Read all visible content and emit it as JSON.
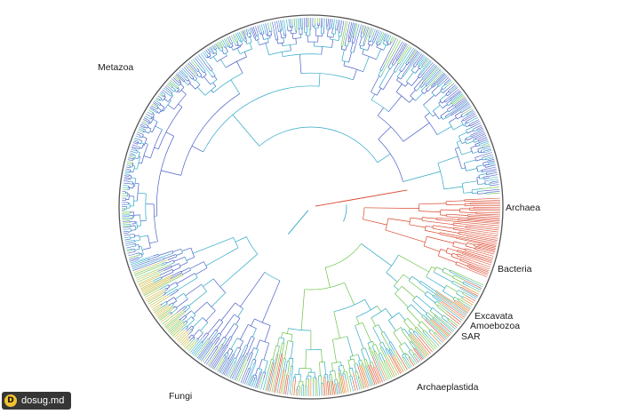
{
  "diagram": {
    "type": "circular-phylogenetic-tree",
    "clades": [
      {
        "id": "metazoa",
        "label": "Metazoa",
        "color": "#3f5fc4"
      },
      {
        "id": "archaea",
        "label": "Archaea",
        "color": "#e9541f"
      },
      {
        "id": "bacteria",
        "label": "Bacteria",
        "color": "#e24a2c"
      },
      {
        "id": "excavata",
        "label": "Excavata",
        "color": "#d6a12a"
      },
      {
        "id": "amoebozoa",
        "label": "Amoebozoa",
        "color": "#48b07a"
      },
      {
        "id": "sar",
        "label": "SAR",
        "color": "#3aa8c8"
      },
      {
        "id": "archaeplastida",
        "label": "Archaeplastida",
        "color": "#2fa7c9"
      },
      {
        "id": "fungi",
        "label": "Fungi",
        "color": "#45b4c6"
      }
    ],
    "palette": {
      "blue": "#4a5fc7",
      "cyan": "#2fa8c7",
      "green": "#6cc24a",
      "yellow": "#c9b738",
      "orange": "#e07a22",
      "red": "#d9472c",
      "ring": "#555555"
    }
  },
  "watermark": {
    "logo_text": "D",
    "text": "dosug.md"
  }
}
